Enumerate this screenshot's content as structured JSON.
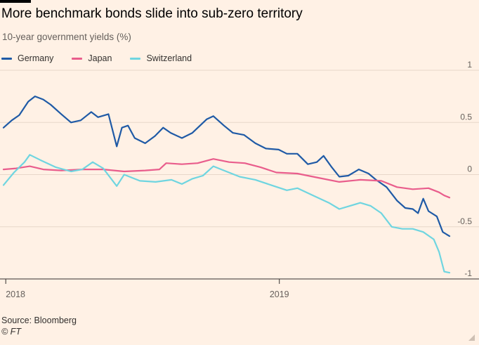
{
  "title": "More benchmark bonds slide into sub-zero territory",
  "subtitle": "10-year government yields (%)",
  "source": "Source: Bloomberg",
  "credit": "© FT",
  "chart_data": {
    "type": "line",
    "title": "More benchmark bonds slide into sub-zero territory",
    "subtitle": "10-year government yields (%)",
    "xlabel": "",
    "ylabel": "",
    "ylim": [
      -1,
      1
    ],
    "y_ticks": [
      1,
      0.5,
      0,
      -0.5,
      -1
    ],
    "y_tick_labels": [
      "1",
      "0.5",
      "0",
      "-0.5",
      "-1"
    ],
    "x_ticks": [
      "2018-01-01",
      "2019-01-01"
    ],
    "x_tick_labels": [
      "2018",
      "2019"
    ],
    "xlim": [
      "2017-12-29",
      "2019-08-16"
    ],
    "grid": true,
    "legend_position": "top-left",
    "series": [
      {
        "name": "Germany",
        "color": "#1f5aa6",
        "points": [
          [
            "2017-12-29",
            0.45
          ],
          [
            "2018-01-09",
            0.52
          ],
          [
            "2018-01-19",
            0.57
          ],
          [
            "2018-01-31",
            0.7
          ],
          [
            "2018-02-09",
            0.75
          ],
          [
            "2018-02-20",
            0.72
          ],
          [
            "2018-03-02",
            0.67
          ],
          [
            "2018-03-16",
            0.58
          ],
          [
            "2018-03-29",
            0.5
          ],
          [
            "2018-04-11",
            0.52
          ],
          [
            "2018-04-25",
            0.6
          ],
          [
            "2018-05-04",
            0.55
          ],
          [
            "2018-05-18",
            0.58
          ],
          [
            "2018-05-29",
            0.27
          ],
          [
            "2018-06-05",
            0.45
          ],
          [
            "2018-06-13",
            0.47
          ],
          [
            "2018-06-22",
            0.35
          ],
          [
            "2018-07-06",
            0.3
          ],
          [
            "2018-07-19",
            0.37
          ],
          [
            "2018-07-30",
            0.45
          ],
          [
            "2018-08-09",
            0.4
          ],
          [
            "2018-08-24",
            0.35
          ],
          [
            "2018-09-07",
            0.4
          ],
          [
            "2018-09-26",
            0.53
          ],
          [
            "2018-10-05",
            0.56
          ],
          [
            "2018-10-19",
            0.47
          ],
          [
            "2018-10-31",
            0.4
          ],
          [
            "2018-11-15",
            0.38
          ],
          [
            "2018-11-30",
            0.3
          ],
          [
            "2018-12-14",
            0.25
          ],
          [
            "2018-12-31",
            0.24
          ],
          [
            "2019-01-11",
            0.2
          ],
          [
            "2019-01-25",
            0.2
          ],
          [
            "2019-02-08",
            0.1
          ],
          [
            "2019-02-20",
            0.12
          ],
          [
            "2019-03-01",
            0.18
          ],
          [
            "2019-03-12",
            0.07
          ],
          [
            "2019-03-22",
            -0.02
          ],
          [
            "2019-04-03",
            -0.01
          ],
          [
            "2019-04-17",
            0.05
          ],
          [
            "2019-04-30",
            0.01
          ],
          [
            "2019-05-10",
            -0.05
          ],
          [
            "2019-05-24",
            -0.12
          ],
          [
            "2019-06-07",
            -0.25
          ],
          [
            "2019-06-18",
            -0.32
          ],
          [
            "2019-06-28",
            -0.33
          ],
          [
            "2019-07-05",
            -0.37
          ],
          [
            "2019-07-12",
            -0.23
          ],
          [
            "2019-07-19",
            -0.35
          ],
          [
            "2019-07-30",
            -0.4
          ],
          [
            "2019-08-07",
            -0.55
          ],
          [
            "2019-08-16",
            -0.59
          ]
        ]
      },
      {
        "name": "Japan",
        "color": "#e95d8c",
        "points": [
          [
            "2017-12-29",
            0.05
          ],
          [
            "2018-01-15",
            0.06
          ],
          [
            "2018-02-02",
            0.08
          ],
          [
            "2018-02-20",
            0.05
          ],
          [
            "2018-03-16",
            0.04
          ],
          [
            "2018-04-13",
            0.05
          ],
          [
            "2018-05-11",
            0.05
          ],
          [
            "2018-06-08",
            0.03
          ],
          [
            "2018-07-06",
            0.04
          ],
          [
            "2018-07-25",
            0.05
          ],
          [
            "2018-08-03",
            0.11
          ],
          [
            "2018-08-24",
            0.1
          ],
          [
            "2018-09-14",
            0.11
          ],
          [
            "2018-10-05",
            0.15
          ],
          [
            "2018-10-26",
            0.12
          ],
          [
            "2018-11-16",
            0.11
          ],
          [
            "2018-12-07",
            0.07
          ],
          [
            "2018-12-28",
            0.02
          ],
          [
            "2019-01-25",
            0.01
          ],
          [
            "2019-02-22",
            -0.03
          ],
          [
            "2019-03-22",
            -0.07
          ],
          [
            "2019-04-19",
            -0.05
          ],
          [
            "2019-05-17",
            -0.06
          ],
          [
            "2019-06-07",
            -0.12
          ],
          [
            "2019-06-28",
            -0.14
          ],
          [
            "2019-07-19",
            -0.13
          ],
          [
            "2019-08-02",
            -0.17
          ],
          [
            "2019-08-09",
            -0.2
          ],
          [
            "2019-08-16",
            -0.22
          ]
        ]
      },
      {
        "name": "Switzerland",
        "color": "#6fd5e0",
        "points": [
          [
            "2017-12-29",
            -0.1
          ],
          [
            "2018-01-12",
            0.02
          ],
          [
            "2018-01-26",
            0.12
          ],
          [
            "2018-02-02",
            0.19
          ],
          [
            "2018-02-16",
            0.14
          ],
          [
            "2018-03-09",
            0.07
          ],
          [
            "2018-03-29",
            0.03
          ],
          [
            "2018-04-13",
            0.05
          ],
          [
            "2018-04-27",
            0.12
          ],
          [
            "2018-05-11",
            0.06
          ],
          [
            "2018-05-29",
            -0.11
          ],
          [
            "2018-06-08",
            0.0
          ],
          [
            "2018-06-29",
            -0.06
          ],
          [
            "2018-07-20",
            -0.07
          ],
          [
            "2018-08-10",
            -0.05
          ],
          [
            "2018-08-24",
            -0.09
          ],
          [
            "2018-09-07",
            -0.04
          ],
          [
            "2018-09-21",
            -0.01
          ],
          [
            "2018-10-05",
            0.08
          ],
          [
            "2018-10-19",
            0.04
          ],
          [
            "2018-11-09",
            -0.02
          ],
          [
            "2018-11-30",
            -0.05
          ],
          [
            "2018-12-21",
            -0.1
          ],
          [
            "2019-01-11",
            -0.15
          ],
          [
            "2019-01-25",
            -0.13
          ],
          [
            "2019-02-15",
            -0.2
          ],
          [
            "2019-03-08",
            -0.27
          ],
          [
            "2019-03-22",
            -0.33
          ],
          [
            "2019-04-05",
            -0.3
          ],
          [
            "2019-04-19",
            -0.27
          ],
          [
            "2019-05-03",
            -0.3
          ],
          [
            "2019-05-17",
            -0.37
          ],
          [
            "2019-05-31",
            -0.5
          ],
          [
            "2019-06-14",
            -0.52
          ],
          [
            "2019-06-28",
            -0.52
          ],
          [
            "2019-07-12",
            -0.55
          ],
          [
            "2019-07-26",
            -0.62
          ],
          [
            "2019-08-02",
            -0.74
          ],
          [
            "2019-08-09",
            -0.93
          ],
          [
            "2019-08-16",
            -0.94
          ]
        ]
      }
    ]
  }
}
